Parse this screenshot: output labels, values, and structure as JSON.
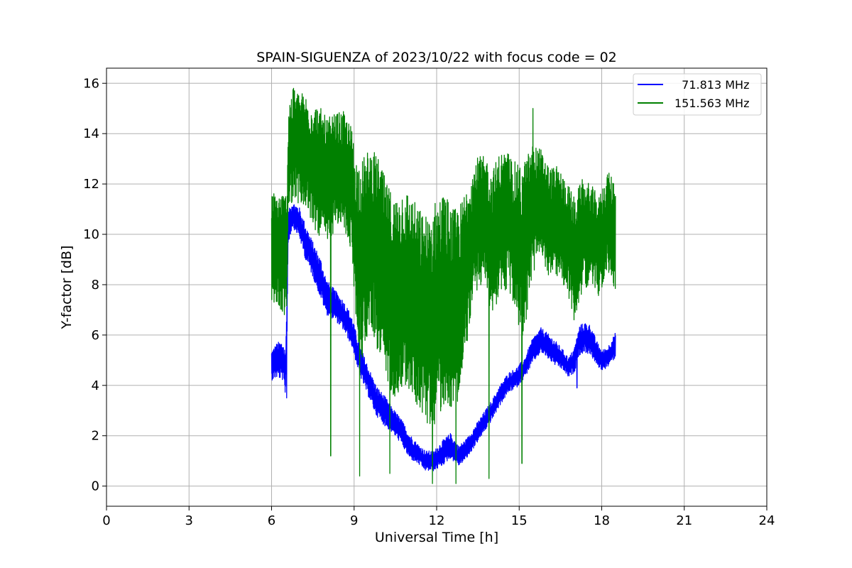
{
  "chart_data": {
    "type": "line",
    "title": "SPAIN-SIGUENZA of 2023/10/22 with focus code = 02",
    "xlabel": "Universal Time [h]",
    "ylabel": "Y-factor [dB]",
    "xlim": [
      0,
      24
    ],
    "ylim": [
      -0.8,
      16.6
    ],
    "xticks": [
      0,
      3,
      6,
      9,
      12,
      15,
      18,
      21,
      24
    ],
    "yticks": [
      0,
      2,
      4,
      6,
      8,
      10,
      12,
      14,
      16
    ],
    "grid": true,
    "legend_position": "top-right",
    "series": [
      {
        "name": "71.813 MHz",
        "legend_label": "  71.813 MHz",
        "color": "#0000ff",
        "x": [
          6.0,
          6.2,
          6.4,
          6.5,
          6.55,
          6.6,
          6.75,
          7.0,
          7.2,
          7.5,
          7.8,
          8.0,
          8.3,
          8.6,
          8.9,
          9.2,
          9.5,
          9.8,
          10.1,
          10.4,
          10.7,
          11.0,
          11.3,
          11.6,
          11.9,
          12.2,
          12.5,
          12.8,
          13.1,
          13.4,
          13.7,
          14.0,
          14.3,
          14.6,
          14.9,
          15.2,
          15.5,
          15.8,
          16.0,
          16.3,
          16.6,
          16.8,
          17.0,
          17.2,
          17.4,
          17.6,
          17.8,
          18.0,
          18.2,
          18.5
        ],
        "y": [
          4.8,
          5.0,
          5.0,
          4.5,
          6.0,
          10.2,
          10.8,
          10.5,
          9.8,
          9.0,
          8.2,
          7.5,
          7.2,
          6.8,
          6.2,
          5.0,
          4.2,
          3.4,
          3.0,
          2.6,
          2.2,
          1.6,
          1.3,
          1.0,
          1.0,
          1.3,
          1.6,
          1.2,
          1.5,
          2.0,
          2.5,
          3.0,
          3.6,
          4.1,
          4.3,
          4.7,
          5.4,
          5.8,
          5.6,
          5.3,
          5.0,
          4.7,
          5.0,
          5.8,
          5.9,
          5.8,
          5.3,
          5.0,
          5.1,
          5.6
        ],
        "band": [
          0.6,
          0.7,
          0.8,
          0.9,
          1.0,
          0.7,
          0.5,
          0.6,
          0.7,
          0.7,
          0.8,
          0.7,
          0.6,
          0.6,
          0.6,
          0.6,
          0.6,
          0.6,
          0.6,
          0.5,
          0.5,
          0.5,
          0.4,
          0.4,
          0.4,
          0.5,
          0.5,
          0.4,
          0.4,
          0.4,
          0.4,
          0.4,
          0.4,
          0.4,
          0.4,
          0.4,
          0.5,
          0.5,
          0.5,
          0.5,
          0.4,
          0.4,
          0.5,
          0.6,
          0.6,
          0.6,
          0.5,
          0.4,
          0.4,
          0.5
        ]
      },
      {
        "name": "151.563 MHz",
        "legend_label": "151.563 MHz",
        "color": "#008000",
        "x": [
          6.0,
          6.3,
          6.55,
          6.62,
          6.8,
          7.2,
          7.5,
          7.8,
          8.0,
          8.3,
          8.6,
          8.9,
          9.1,
          9.3,
          9.6,
          9.9,
          10.2,
          10.5,
          10.8,
          11.1,
          11.4,
          11.7,
          12.0,
          12.3,
          12.6,
          12.9,
          13.2,
          13.5,
          13.8,
          14.0,
          14.3,
          14.6,
          14.9,
          15.1,
          15.3,
          15.5,
          15.8,
          16.1,
          16.4,
          16.7,
          17.0,
          17.3,
          17.6,
          17.9,
          18.2,
          18.5
        ],
        "y": [
          9.5,
          9.3,
          9.2,
          13.2,
          13.6,
          13.3,
          12.8,
          12.4,
          12.0,
          12.5,
          12.6,
          11.8,
          9.5,
          9.0,
          10.0,
          9.0,
          8.0,
          7.5,
          8.0,
          7.5,
          7.0,
          6.5,
          7.0,
          7.5,
          7.0,
          7.5,
          9.5,
          10.5,
          10.5,
          9.5,
          10.5,
          10.5,
          9.8,
          9.2,
          10.0,
          11.0,
          11.2,
          10.5,
          10.5,
          10.0,
          9.0,
          10.0,
          10.0,
          9.5,
          10.5,
          10.0
        ],
        "band": [
          2.2,
          2.4,
          2.5,
          2.2,
          2.2,
          2.3,
          2.5,
          2.6,
          2.6,
          2.3,
          2.3,
          2.5,
          3.5,
          4.0,
          3.5,
          4.0,
          4.0,
          4.0,
          4.0,
          4.0,
          4.0,
          4.2,
          4.5,
          4.2,
          4.0,
          3.8,
          3.0,
          2.6,
          2.6,
          3.0,
          2.8,
          2.8,
          3.0,
          3.5,
          3.2,
          2.6,
          2.2,
          2.2,
          2.2,
          2.2,
          2.5,
          2.2,
          2.0,
          2.0,
          2.0,
          2.2
        ]
      }
    ],
    "spikes": [
      {
        "series": 1,
        "x": 8.15,
        "y": 1.2
      },
      {
        "series": 1,
        "x": 9.2,
        "y": 0.4
      },
      {
        "series": 1,
        "x": 10.3,
        "y": 0.5
      },
      {
        "series": 1,
        "x": 11.85,
        "y": 0.1
      },
      {
        "series": 1,
        "x": 12.7,
        "y": 0.1
      },
      {
        "series": 1,
        "x": 13.9,
        "y": 0.3
      },
      {
        "series": 1,
        "x": 15.1,
        "y": 0.9
      },
      {
        "series": 1,
        "x": 6.8,
        "y": 15.8
      },
      {
        "series": 1,
        "x": 15.5,
        "y": 15.0
      },
      {
        "series": 0,
        "x": 6.55,
        "y": 3.5
      },
      {
        "series": 0,
        "x": 17.1,
        "y": 3.9
      }
    ]
  }
}
